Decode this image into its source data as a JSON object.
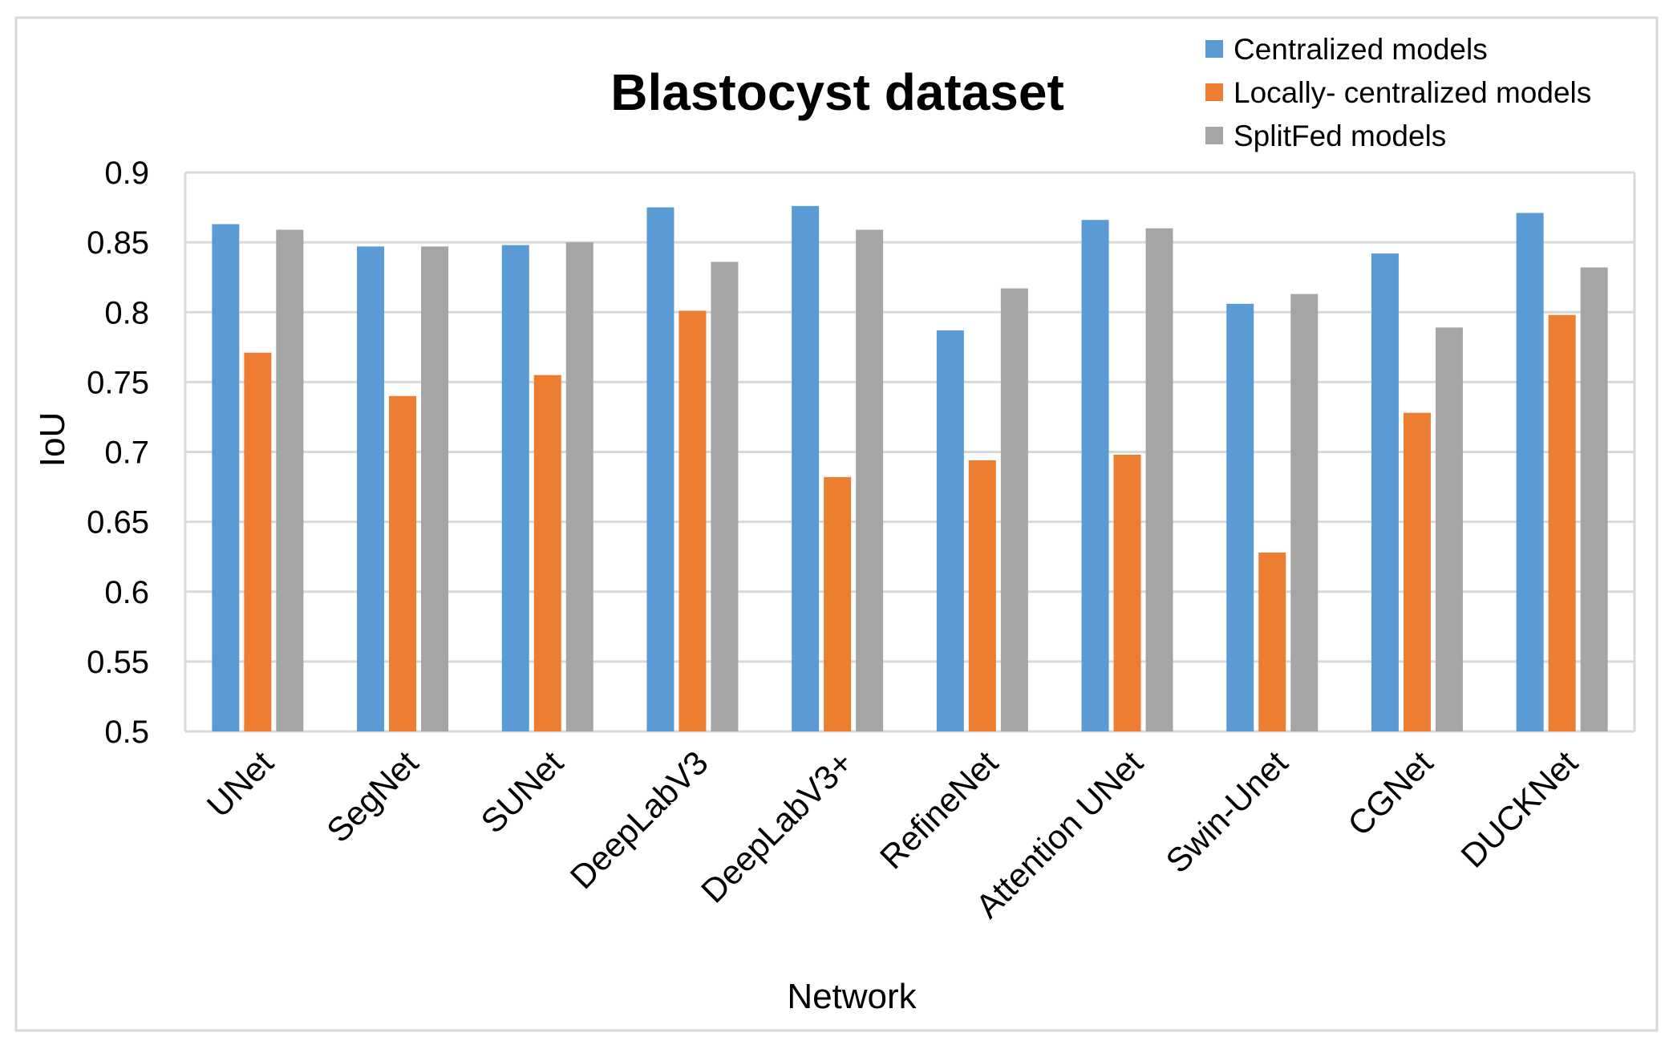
{
  "chart_data": {
    "type": "bar",
    "title": "Blastocyst dataset",
    "xlabel": "Network",
    "ylabel": "IoU",
    "ylim": [
      0.5,
      0.9
    ],
    "yticks": [
      0.5,
      0.55,
      0.6,
      0.65,
      0.7,
      0.75,
      0.8,
      0.85,
      0.9
    ],
    "ytick_labels": [
      "0.5",
      "0.55",
      "0.6",
      "0.65",
      "0.7",
      "0.75",
      "0.8",
      "0.85",
      "0.9"
    ],
    "grid": true,
    "legend_position": "top-right",
    "categories": [
      "UNet",
      "SegNet",
      "SUNet",
      "DeepLabV3",
      "DeepLabV3+",
      "RefineNet",
      "Attention UNet",
      "Swin-Unet",
      "CGNet",
      "DUCKNet"
    ],
    "series": [
      {
        "name": "Centralized models",
        "color": "#5b9bd5",
        "values": [
          0.863,
          0.847,
          0.848,
          0.875,
          0.876,
          0.787,
          0.866,
          0.806,
          0.842,
          0.871
        ]
      },
      {
        "name": "Locally- centralized models",
        "color": "#ed7d31",
        "values": [
          0.771,
          0.74,
          0.755,
          0.801,
          0.682,
          0.694,
          0.698,
          0.628,
          0.728,
          0.798
        ]
      },
      {
        "name": "SplitFed models",
        "color": "#a5a5a5",
        "values": [
          0.859,
          0.847,
          0.85,
          0.836,
          0.859,
          0.817,
          0.86,
          0.813,
          0.789,
          0.832
        ]
      }
    ]
  }
}
